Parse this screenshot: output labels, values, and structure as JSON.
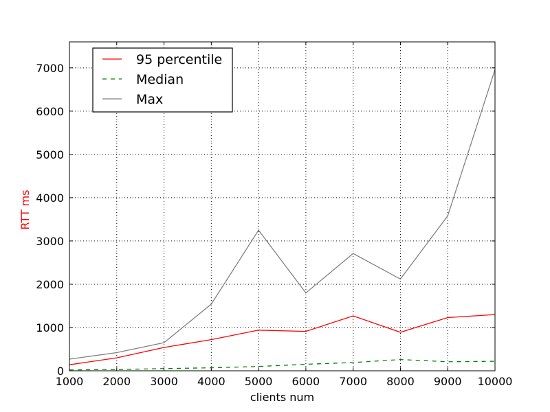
{
  "chart_data": {
    "type": "line",
    "title": "",
    "xlabel": "clients num",
    "ylabel": "RTT ms",
    "ylabel_color": "#ff0000",
    "xlim": [
      1000,
      10000
    ],
    "ylim": [
      0,
      7600
    ],
    "x": [
      1000,
      2000,
      3000,
      4000,
      5000,
      6000,
      7000,
      8000,
      9000,
      10000
    ],
    "x_ticks": [
      "1000",
      "2000",
      "3000",
      "4000",
      "5000",
      "6000",
      "7000",
      "8000",
      "9000",
      "10000"
    ],
    "y_ticks": [
      "0",
      "1000",
      "2000",
      "3000",
      "4000",
      "5000",
      "6000",
      "7000"
    ],
    "y_tick_values": [
      0,
      1000,
      2000,
      3000,
      4000,
      5000,
      6000,
      7000
    ],
    "grid": true,
    "legend_position": "top-left",
    "series": [
      {
        "name": "95 percentile",
        "color": "#ff0000",
        "style": "solid",
        "values": [
          140,
          300,
          540,
          720,
          940,
          910,
          1270,
          890,
          1230,
          1300
        ]
      },
      {
        "name": "Median",
        "color": "#008000",
        "style": "dashed",
        "values": [
          20,
          30,
          50,
          70,
          100,
          150,
          190,
          260,
          210,
          220
        ]
      },
      {
        "name": "Max",
        "color": "#808080",
        "style": "solid",
        "values": [
          270,
          420,
          650,
          1540,
          3250,
          1800,
          2710,
          2120,
          3580,
          6960
        ]
      }
    ]
  }
}
